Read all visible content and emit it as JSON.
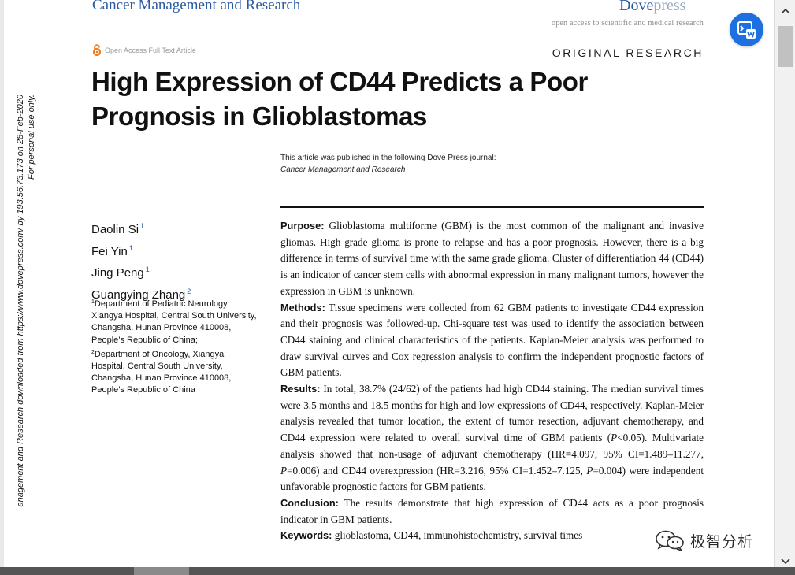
{
  "header": {
    "journal": "Cancer Management and Research",
    "logo_bold": "Dove",
    "logo_light": "press",
    "tagline": "open access to scientific and medical research"
  },
  "open_access_label": "Open Access Full Text Article",
  "article_type": "ORIGINAL RESEARCH",
  "title": "High Expression of CD44 Predicts a Poor Prognosis in Glioblastomas",
  "publication_note": {
    "line1": "This article was published in the following Dove Press journal:",
    "journal": "Cancer Management and Research"
  },
  "authors": [
    {
      "name": "Daolin Si",
      "affil": "1"
    },
    {
      "name": "Fei Yin",
      "affil": "1"
    },
    {
      "name": "Jing Peng",
      "affil": "1"
    },
    {
      "name": "Guangying Zhang",
      "affil": "2"
    }
  ],
  "affiliations": [
    {
      "num": "1",
      "text": "Department of Pediatric Neurology, Xiangya Hospital, Central South University, Changsha, Hunan Province 410008, People’s Republic of China;"
    },
    {
      "num": "2",
      "text": "Department of Oncology, Xiangya Hospital, Central South University, Changsha, Hunan Province 410008, People’s Republic of China"
    }
  ],
  "abstract": {
    "purpose_label": "Purpose:",
    "purpose": "Glioblastoma multiforme (GBM) is the most common of the malignant and invasive gliomas. High grade glioma is prone to relapse and has a poor prognosis. However, there is a big difference in terms of survival time with the same grade glioma. Cluster of differentiation 44 (CD44) is an indicator of cancer stem cells with abnormal expression in many malignant tumors, however the expression in GBM is unknown.",
    "methods_label": "Methods:",
    "methods": "Tissue specimens were collected from 62 GBM patients to investigate CD44 expression and their prognosis was followed-up. Chi-square test was used to identify the association between CD44 staining and clinical characteristics of the patients. Kaplan-Meier analysis was performed to draw survival curves and Cox regression analysis to confirm the independent prognostic factors of GBM patients.",
    "results_label": "Results:",
    "results_a": "In total, 38.7% (24/62) of the patients had high CD44 staining. The median survival times were 3.5 months and 18.5 months for high and low expressions of CD44, respectively. Kaplan-Meier analysis revealed that tumor location, the extent of tumor resection, adjuvant chemotherapy, and CD44 expression were related to overall survival time of GBM patients (",
    "results_p1": "P",
    "results_b": "<0.05). Multivariate analysis showed that non-usage of adjuvant chemotherapy (HR=4.097, 95% CI=1.489–11.277, ",
    "results_p2": "P",
    "results_c": "=0.006) and CD44 overexpression (HR=3.216, 95% CI=1.452–7.125, ",
    "results_p3": "P",
    "results_d": "=0.004) were independent unfavorable prognostic factors for GBM patients.",
    "conclusion_label": "Conclusion:",
    "conclusion": "The results demonstrate that high expression of CD44 acts as a poor prognosis indicator in GBM patients.",
    "keywords_label": "Keywords:",
    "keywords": "glioblastoma, CD44, immunohistochemistry, survival times"
  },
  "side_note": {
    "line1": "anagement and Research downloaded from https://www.dovepress.com/ by 193.56.73.173 on 28-Feb-2020",
    "line2": "For personal use only."
  },
  "watermark": "极智分析",
  "icons": {
    "open_access": "open-lock-icon",
    "fab": "translate-icon",
    "watermark": "wechat-icon"
  },
  "colors": {
    "brand_blue": "#2a5aa3",
    "fab_blue": "#1e6fe0",
    "open_access_orange": "#f07c1e"
  }
}
